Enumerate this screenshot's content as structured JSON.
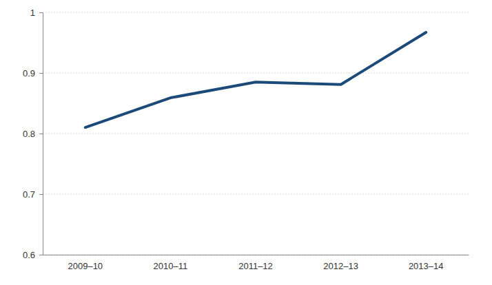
{
  "chart_data": {
    "type": "line",
    "categories": [
      "2009–10",
      "2010–11",
      "2011–12",
      "2012–13",
      "2013–14"
    ],
    "values": [
      0.81,
      0.859,
      0.885,
      0.881,
      0.967
    ],
    "color": "#1b4a78",
    "ylim": [
      0.6,
      1
    ],
    "yticks": [
      0.6,
      0.7,
      0.8,
      0.9,
      1
    ],
    "grid": true
  }
}
